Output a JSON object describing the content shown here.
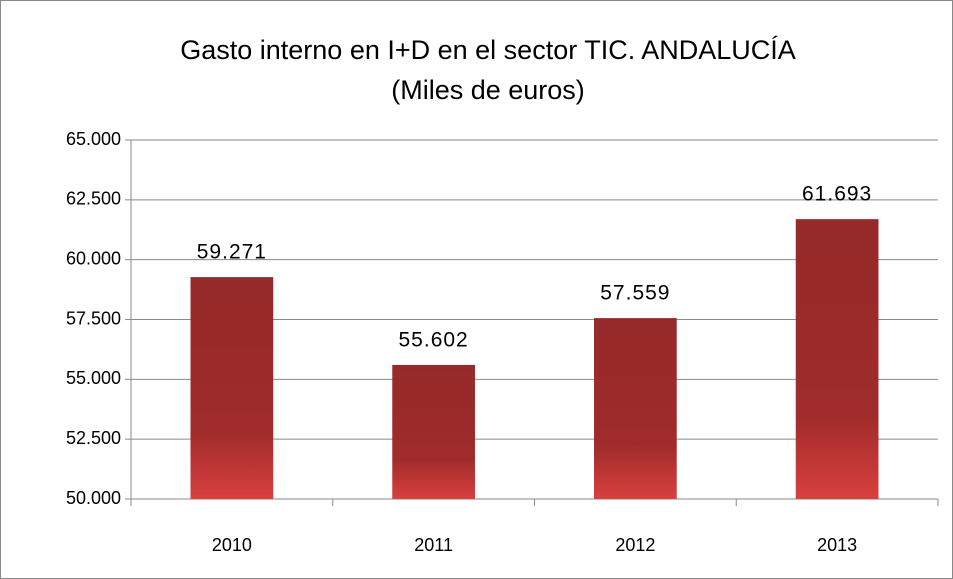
{
  "chart_data": {
    "type": "bar",
    "title": [
      "Gasto interno  en I+D en el sector TIC. ANDALUCÍA",
      "(Miles de euros)"
    ],
    "categories": [
      "2010",
      "2011",
      "2012",
      "2013"
    ],
    "values": [
      59271,
      55602,
      57559,
      61693
    ],
    "value_labels": [
      "59.271",
      "55.602",
      "57.559",
      "61.693"
    ],
    "color": "#9b2b2b",
    "ylim": [
      50000,
      65000
    ],
    "yticks": [
      {
        "value": 50000,
        "label": "50.000"
      },
      {
        "value": 52500,
        "label": "52.500"
      },
      {
        "value": 55000,
        "label": "55.000"
      },
      {
        "value": 57500,
        "label": "57.500"
      },
      {
        "value": 60000,
        "label": "60.000"
      },
      {
        "value": 62500,
        "label": "62.500"
      },
      {
        "value": 65000,
        "label": "65.000"
      }
    ],
    "grid": true
  }
}
